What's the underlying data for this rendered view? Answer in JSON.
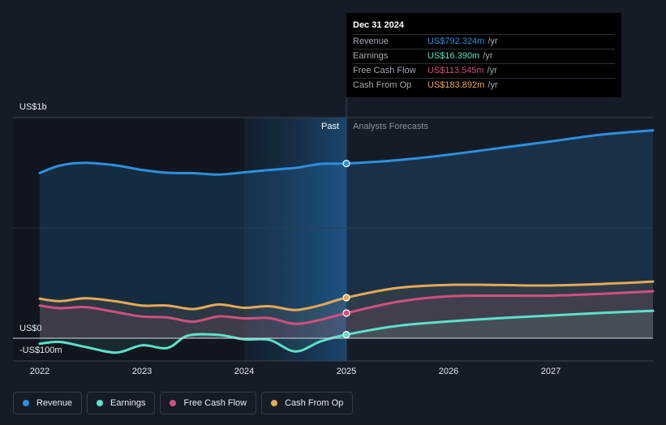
{
  "chart_data": {
    "type": "line",
    "title": "",
    "xlabel": "",
    "ylabel": "",
    "ylim": [
      -100,
      1000
    ],
    "y_axis_labels": [
      "US$1b",
      "US$0",
      "-US$100m"
    ],
    "x_ticks": [
      "2022",
      "2023",
      "2024",
      "2025",
      "2026",
      "2027"
    ],
    "past_label": "Past",
    "forecast_label": "Analysts Forecasts",
    "highlight_range": [
      2024.0,
      2025.0
    ],
    "current_x": 2025.0,
    "series": [
      {
        "name": "Revenue",
        "color": "#2d8fe0",
        "points": [
          [
            2022.0,
            749
          ],
          [
            2022.2,
            783
          ],
          [
            2022.45,
            795
          ],
          [
            2022.75,
            783
          ],
          [
            2023.0,
            763
          ],
          [
            2023.25,
            750
          ],
          [
            2023.5,
            748
          ],
          [
            2023.75,
            742
          ],
          [
            2024.0,
            752
          ],
          [
            2024.25,
            763
          ],
          [
            2024.5,
            772
          ],
          [
            2024.75,
            790
          ],
          [
            2025.0,
            792
          ],
          [
            2025.5,
            807
          ],
          [
            2026.0,
            832
          ],
          [
            2026.5,
            862
          ],
          [
            2027.0,
            892
          ],
          [
            2027.5,
            923
          ],
          [
            2028.0,
            942
          ]
        ]
      },
      {
        "name": "Earnings",
        "color": "#5de0c8",
        "points": [
          [
            2022.0,
            -25
          ],
          [
            2022.2,
            -17
          ],
          [
            2022.45,
            -40
          ],
          [
            2022.75,
            -65
          ],
          [
            2023.0,
            -32
          ],
          [
            2023.25,
            -44
          ],
          [
            2023.45,
            12
          ],
          [
            2023.75,
            15
          ],
          [
            2024.0,
            -5
          ],
          [
            2024.25,
            -8
          ],
          [
            2024.5,
            -60
          ],
          [
            2024.75,
            -14
          ],
          [
            2025.0,
            16
          ],
          [
            2025.5,
            56
          ],
          [
            2026.0,
            76
          ],
          [
            2026.5,
            91
          ],
          [
            2027.0,
            103
          ],
          [
            2027.5,
            115
          ],
          [
            2028.0,
            124
          ]
        ]
      },
      {
        "name": "Free Cash Flow",
        "color": "#d0507d",
        "points": [
          [
            2022.0,
            148
          ],
          [
            2022.2,
            136
          ],
          [
            2022.45,
            141
          ],
          [
            2022.75,
            118
          ],
          [
            2023.0,
            98
          ],
          [
            2023.25,
            94
          ],
          [
            2023.5,
            75
          ],
          [
            2023.75,
            99
          ],
          [
            2024.0,
            90
          ],
          [
            2024.25,
            91
          ],
          [
            2024.5,
            65
          ],
          [
            2024.75,
            84
          ],
          [
            2025.0,
            114
          ],
          [
            2025.5,
            165
          ],
          [
            2026.0,
            190
          ],
          [
            2026.5,
            193
          ],
          [
            2027.0,
            193
          ],
          [
            2027.5,
            201
          ],
          [
            2028.0,
            213
          ]
        ]
      },
      {
        "name": "Cash From Op",
        "color": "#e6a857",
        "points": [
          [
            2022.0,
            179
          ],
          [
            2022.2,
            168
          ],
          [
            2022.45,
            181
          ],
          [
            2022.75,
            167
          ],
          [
            2023.0,
            148
          ],
          [
            2023.25,
            148
          ],
          [
            2023.5,
            132
          ],
          [
            2023.75,
            153
          ],
          [
            2024.0,
            138
          ],
          [
            2024.25,
            145
          ],
          [
            2024.5,
            128
          ],
          [
            2024.75,
            150
          ],
          [
            2025.0,
            184
          ],
          [
            2025.5,
            228
          ],
          [
            2026.0,
            242
          ],
          [
            2026.5,
            241
          ],
          [
            2027.0,
            239
          ],
          [
            2027.5,
            246
          ],
          [
            2028.0,
            257
          ]
        ]
      }
    ]
  },
  "tooltip": {
    "date": "Dec 31 2024",
    "unit": "/yr",
    "rows": [
      {
        "label": "Revenue",
        "value": "US$792.324m",
        "color": "#2d8fe0"
      },
      {
        "label": "Earnings",
        "value": "US$16.390m",
        "color": "#5de0c8"
      },
      {
        "label": "Free Cash Flow",
        "value": "US$113.545m",
        "color": "#d0507d"
      },
      {
        "label": "Cash From Op",
        "value": "US$183.892m",
        "color": "#e6a857"
      }
    ]
  },
  "legend": [
    {
      "label": "Revenue",
      "color": "#2d8fe0"
    },
    {
      "label": "Earnings",
      "color": "#5de0c8"
    },
    {
      "label": "Free Cash Flow",
      "color": "#d0507d"
    },
    {
      "label": "Cash From Op",
      "color": "#e6a857"
    }
  ]
}
